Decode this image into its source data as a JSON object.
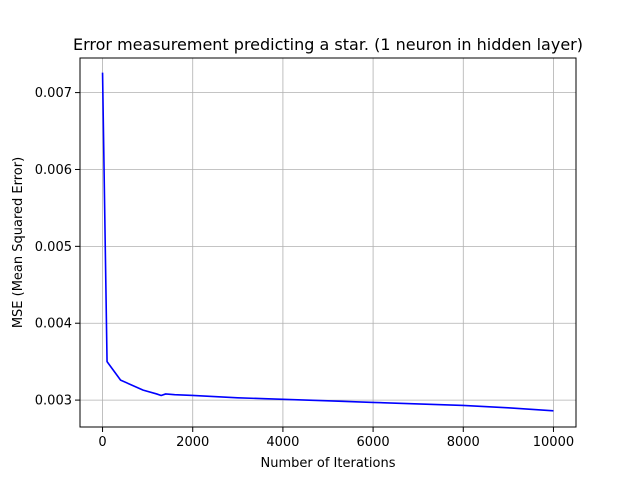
{
  "chart_data": {
    "type": "line",
    "title": "Error measurement predicting a star. (1 neuron in hidden layer)",
    "xlabel": "Number of Iterations",
    "ylabel": "MSE (Mean Squared Error)",
    "xlim": [
      -500,
      10500
    ],
    "ylim": [
      0.00265,
      0.00745
    ],
    "xticks": [
      0,
      2000,
      4000,
      6000,
      8000,
      10000
    ],
    "xtick_labels": [
      "0",
      "2000",
      "4000",
      "6000",
      "8000",
      "10000"
    ],
    "yticks": [
      0.003,
      0.004,
      0.005,
      0.006,
      0.007
    ],
    "ytick_labels": [
      "0.003",
      "0.004",
      "0.005",
      "0.006",
      "0.007"
    ],
    "grid": true,
    "series": [
      {
        "color": "#0000ff",
        "x": [
          0,
          100,
          400,
          900,
          1200,
          1300,
          1400,
          1600,
          2000,
          3000,
          4000,
          5000,
          6000,
          7000,
          8000,
          9000,
          10000
        ],
        "y": [
          0.00726,
          0.0035,
          0.00326,
          0.00313,
          0.00308,
          0.00306,
          0.00308,
          0.00307,
          0.00306,
          0.00303,
          0.00301,
          0.00299,
          0.00297,
          0.00295,
          0.00293,
          0.0029,
          0.00286
        ]
      }
    ]
  }
}
